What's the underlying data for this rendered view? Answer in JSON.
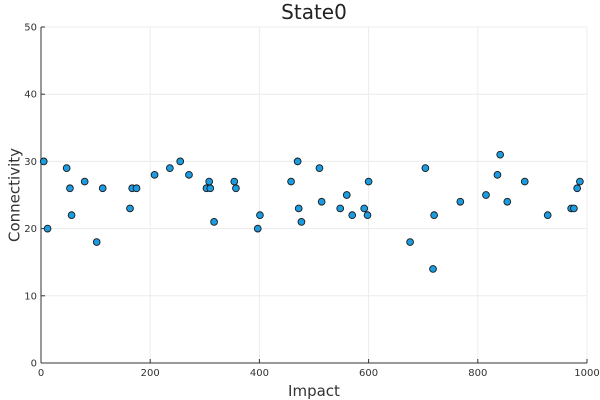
{
  "chart_data": {
    "type": "scatter",
    "title": "State0",
    "xlabel": "Impact",
    "ylabel": "Connectivity",
    "xlim": [
      0,
      1000
    ],
    "ylim": [
      0,
      50
    ],
    "xticks": [
      0,
      200,
      400,
      600,
      800,
      1000
    ],
    "yticks": [
      0,
      10,
      20,
      30,
      40,
      50
    ],
    "grid": true,
    "legend": "none",
    "marker_color": "#1b9be0",
    "series": [
      {
        "x": [
          5,
          12,
          47,
          53,
          56,
          80,
          102,
          113,
          163,
          167,
          175,
          208,
          236,
          255,
          271,
          303,
          308,
          310,
          317,
          354,
          357,
          397,
          401,
          458,
          470,
          472,
          477,
          510,
          514,
          548,
          560,
          570,
          592,
          598,
          600,
          676,
          704,
          718,
          720,
          768,
          815,
          836,
          841,
          854,
          886,
          928,
          971,
          976,
          982,
          987
        ],
        "y": [
          30,
          20,
          29,
          26,
          22,
          27,
          18,
          26,
          23,
          26,
          26,
          28,
          29,
          30,
          28,
          26,
          27,
          26,
          21,
          27,
          26,
          20,
          22,
          27,
          30,
          23,
          21,
          29,
          24,
          23,
          25,
          22,
          23,
          22,
          27,
          18,
          29,
          14,
          22,
          24,
          25,
          28,
          31,
          24,
          27,
          22,
          23,
          23,
          26,
          27
        ]
      }
    ]
  }
}
